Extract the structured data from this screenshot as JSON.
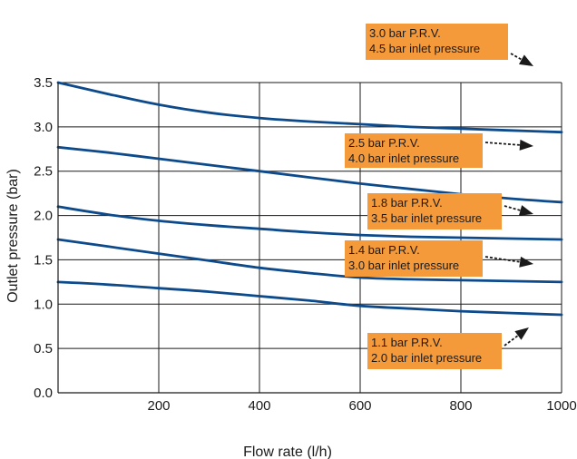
{
  "chart_data": {
    "type": "line",
    "title": "",
    "xlabel": "Flow rate (l/h)",
    "ylabel": "Outlet pressure (bar)",
    "xlim": [
      0,
      1000
    ],
    "ylim": [
      0,
      3.5
    ],
    "xticks": [
      {
        "value": 200,
        "label": "200"
      },
      {
        "value": 400,
        "label": "400"
      },
      {
        "value": 600,
        "label": "600"
      },
      {
        "value": 800,
        "label": "800"
      },
      {
        "value": 1000,
        "label": "1000"
      }
    ],
    "yticks": [
      {
        "value": 0.0,
        "label": "0.0"
      },
      {
        "value": 0.5,
        "label": "0.5"
      },
      {
        "value": 1.0,
        "label": "1.0"
      },
      {
        "value": 1.5,
        "label": "1.5"
      },
      {
        "value": 2.0,
        "label": "2.0"
      },
      {
        "value": 2.5,
        "label": "2.5"
      },
      {
        "value": 3.0,
        "label": "3.0"
      },
      {
        "value": 3.5,
        "label": "3.5"
      }
    ],
    "grid": true,
    "line_color": "#0d4a8c",
    "label_color": "#f59a3a",
    "x": [
      0,
      100,
      200,
      300,
      400,
      500,
      600,
      700,
      800,
      900,
      1000
    ],
    "series": [
      {
        "values": [
          3.5,
          3.37,
          3.25,
          3.16,
          3.1,
          3.06,
          3.03,
          3.0,
          2.98,
          2.96,
          2.94
        ],
        "label_lines": [
          "3.0 bar P.R.V.",
          "4.5 bar inlet pressure"
        ]
      },
      {
        "values": [
          2.77,
          2.71,
          2.64,
          2.57,
          2.5,
          2.43,
          2.36,
          2.3,
          2.24,
          2.19,
          2.15
        ],
        "label_lines": [
          "2.5 bar P.R.V.",
          "4.0 bar inlet pressure"
        ]
      },
      {
        "values": [
          2.1,
          2.01,
          1.94,
          1.89,
          1.85,
          1.81,
          1.78,
          1.76,
          1.75,
          1.74,
          1.73
        ],
        "label_lines": [
          "1.8 bar P.R.V.",
          "3.5 bar inlet pressure"
        ]
      },
      {
        "values": [
          1.73,
          1.65,
          1.57,
          1.49,
          1.41,
          1.35,
          1.3,
          1.28,
          1.27,
          1.26,
          1.25
        ],
        "label_lines": [
          "1.4 bar P.R.V.",
          "3.0 bar inlet pressure"
        ]
      },
      {
        "values": [
          1.25,
          1.22,
          1.18,
          1.14,
          1.09,
          1.04,
          0.98,
          0.95,
          0.92,
          0.9,
          0.88
        ],
        "label_lines": [
          "1.1 bar P.R.V.",
          "2.0 bar inlet pressure"
        ]
      }
    ]
  }
}
